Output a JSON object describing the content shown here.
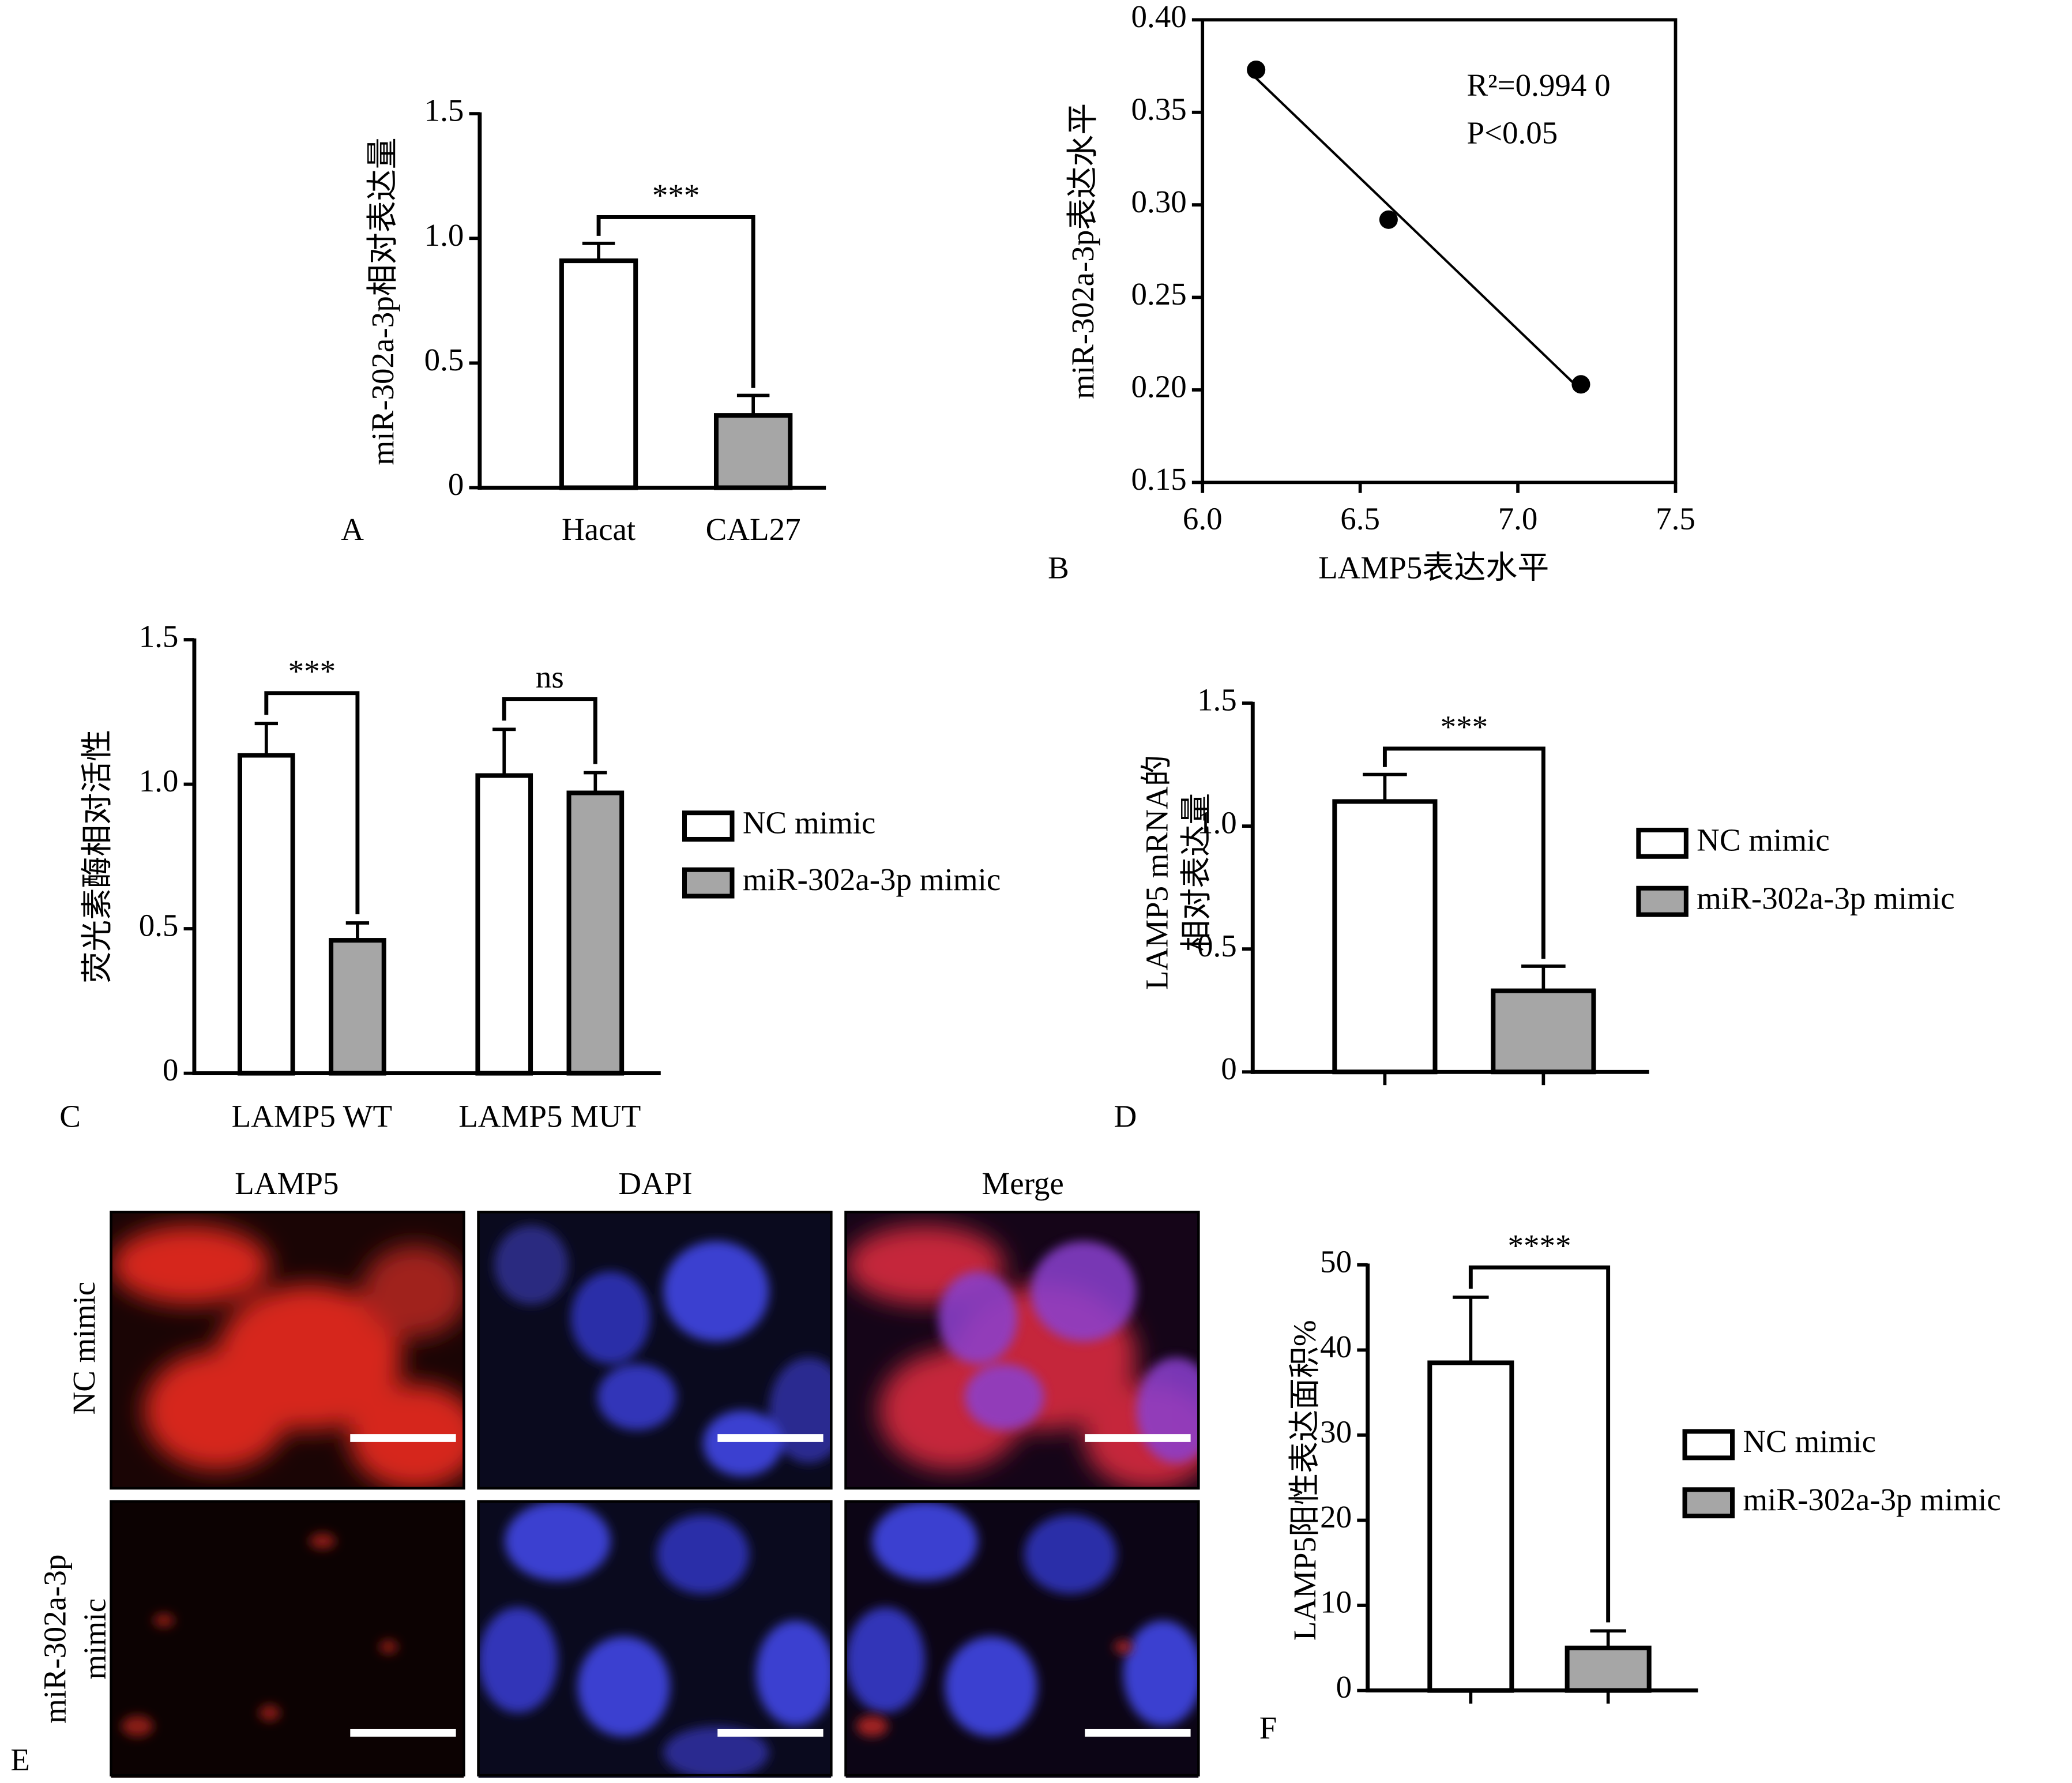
{
  "chart_data": [
    {
      "type": "bar",
      "panel_label": "A",
      "y_label": "miR-302a-3p相对表达量",
      "categories": [
        "Hacat",
        "CAL27"
      ],
      "values": [
        0.91,
        0.29
      ],
      "errors": [
        0.07,
        0.08
      ],
      "colors": [
        "#ffffff",
        "#a6a6a6"
      ],
      "ylim": [
        0,
        1.5
      ],
      "yticks": [
        0,
        0.5,
        {
          "value": 1,
          "label": "1.0"
        },
        1.5
      ],
      "significance": [
        "***"
      ]
    },
    {
      "type": "scatter",
      "panel_label": "B",
      "x_label": "LAMP5表达水平",
      "y_label": "miR-302a-3p表达水平",
      "x": [
        6.17,
        6.59,
        7.2
      ],
      "y": [
        0.373,
        0.292,
        0.203
      ],
      "color": "#000000",
      "xlim": [
        6,
        7.5
      ],
      "xticks": [
        {
          "value": 6,
          "label": "6.0"
        },
        6.5,
        {
          "value": 7,
          "label": "7.0"
        },
        7.5
      ],
      "ylim": [
        0.15,
        0.4
      ],
      "yticks": [
        0.15,
        {
          "value": 0.2,
          "label": "0.20"
        },
        0.25,
        {
          "value": 0.3,
          "label": "0.30"
        },
        0.35,
        {
          "value": 0.4,
          "label": "0.40"
        }
      ],
      "annotations": [
        "R²=0.994 0",
        "P<0.05"
      ],
      "trendline": true
    },
    {
      "type": "bar",
      "panel_label": "C",
      "y_label": "荧光素酶相对活性",
      "categories": [
        "LAMP5 WT",
        "LAMP5 MUT"
      ],
      "series": [
        {
          "name": "NC mimic",
          "color": "#ffffff",
          "values": [
            1.1,
            1.03
          ],
          "errors": [
            0.11,
            0.16
          ]
        },
        {
          "name": "miR-302a-3p mimic",
          "color": "#a6a6a6",
          "values": [
            0.46,
            0.97
          ],
          "errors": [
            0.06,
            0.07
          ]
        }
      ],
      "ylim": [
        0,
        1.5
      ],
      "yticks": [
        0,
        0.5,
        {
          "value": 1,
          "label": "1.0"
        },
        1.5
      ],
      "significance": [
        "***",
        "ns"
      ]
    },
    {
      "type": "bar",
      "panel_label": "D",
      "y_label": [
        "LAMP5 mRNA的",
        "相对表达量"
      ],
      "categories": [
        null,
        null
      ],
      "series": [
        {
          "name": "NC mimic",
          "color": "#ffffff",
          "values": [
            1.1,
            null
          ],
          "errors": [
            0.11,
            null
          ]
        },
        {
          "name": "miR-302a-3p mimic",
          "color": "#a6a6a6",
          "values": [
            null,
            0.33
          ],
          "errors": [
            null,
            0.1
          ]
        }
      ],
      "ylim": [
        0,
        1.5
      ],
      "yticks": [
        0,
        0.5,
        {
          "value": 1,
          "label": "1.0"
        },
        1.5
      ],
      "significance": [
        "***"
      ]
    },
    {
      "type": "bar",
      "panel_label": "F",
      "y_label": "LAMP5阳性表达面积%",
      "categories": [
        null,
        null
      ],
      "series": [
        {
          "name": "NC mimic",
          "color": "#ffffff",
          "values": [
            38.5,
            null
          ],
          "errors": [
            7.7,
            null
          ]
        },
        {
          "name": "miR-302a-3p mimic",
          "color": "#a6a6a6",
          "values": [
            null,
            5
          ],
          "errors": [
            null,
            2
          ]
        }
      ],
      "ylim": [
        0,
        50
      ],
      "yticks": [
        0,
        10,
        20,
        30,
        40,
        50
      ],
      "significance": [
        "****"
      ]
    }
  ],
  "image_panel": {
    "panel_label": "E",
    "columns": [
      "LAMP5",
      "DAPI",
      "Merge"
    ],
    "rows": [
      [
        "NC mimic"
      ],
      [
        "miR-302a-3p",
        "mimic"
      ]
    ]
  }
}
